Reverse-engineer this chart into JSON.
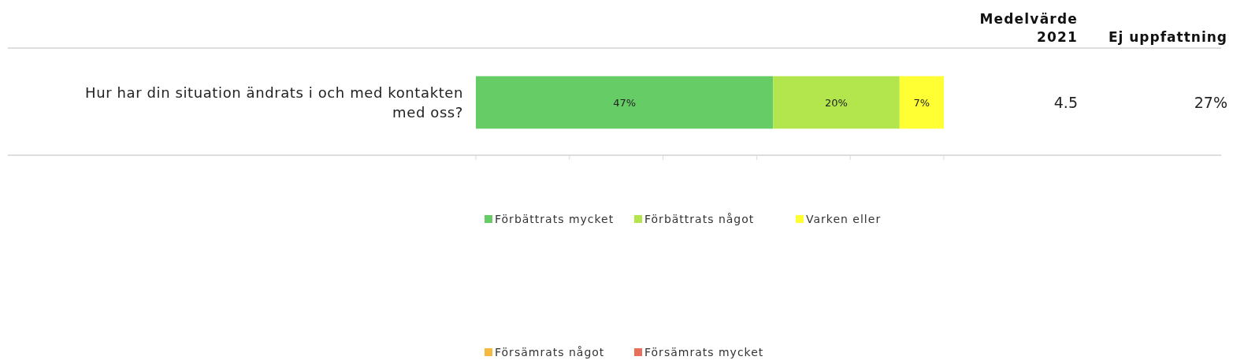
{
  "chart_data": {
    "type": "bar",
    "orientation": "horizontal",
    "stacked": true,
    "categories": [
      "Hur har din situation ändrats i och med kontakten med oss?"
    ],
    "series": [
      {
        "name": "Förbättrats mycket",
        "color": "#66cc66",
        "values": [
          47
        ],
        "value_labels": [
          "47%"
        ]
      },
      {
        "name": "Förbättrats något",
        "color": "#b3e64d",
        "values": [
          20
        ],
        "value_labels": [
          "20%"
        ]
      },
      {
        "name": "Varken eller",
        "color": "#ffff33",
        "values": [
          7
        ],
        "value_labels": [
          "7%"
        ]
      },
      {
        "name": "Försämrats något",
        "color": "#f5b942",
        "values": [
          null
        ],
        "value_labels": [
          null
        ]
      },
      {
        "name": "Försämrats mycket",
        "color": "#e8705a",
        "values": [
          null
        ],
        "value_labels": [
          null
        ]
      }
    ],
    "legend": "bottom",
    "annotations": [
      "Medelvärde 2021",
      "Ej uppfattning",
      "4.5",
      "27%"
    ]
  }
}
